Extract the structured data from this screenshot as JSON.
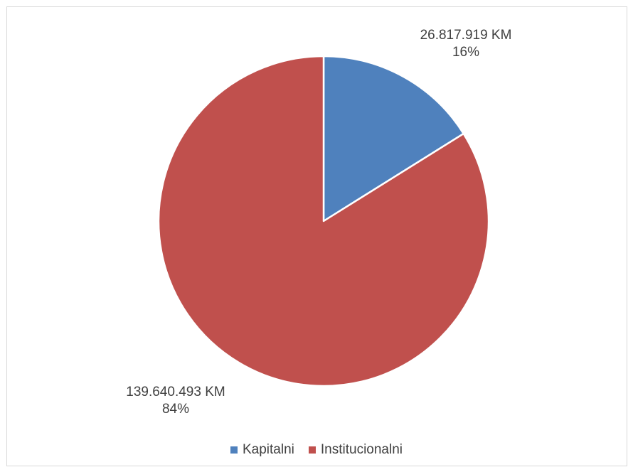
{
  "chart_data": {
    "type": "pie",
    "categories": [
      "Kapitalni",
      "Institucionalni"
    ],
    "values": [
      26817919,
      139640493
    ],
    "percentages": [
      "16%",
      "84%"
    ],
    "value_labels": [
      "26.817.919 KM",
      "139.640.493 KM"
    ],
    "colors": [
      "#4f81bd",
      "#c0504d"
    ],
    "legend_position": "bottom",
    "slice_order": "clockwise-from-top"
  },
  "legend": {
    "items": [
      {
        "label": "Kapitalni",
        "color": "#4f81bd"
      },
      {
        "label": "Institucionalni",
        "color": "#c0504d"
      }
    ]
  }
}
